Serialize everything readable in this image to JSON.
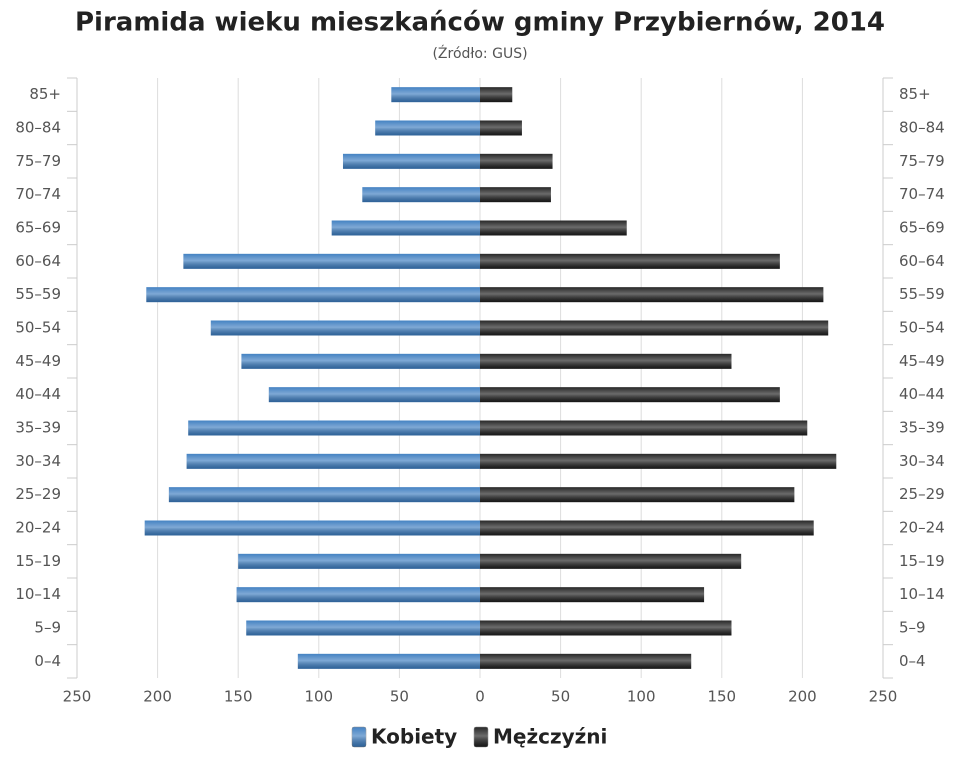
{
  "chart_data": {
    "type": "pyramid",
    "title": "Piramida wieku mieszkańców gminy Przybiernów, 2014",
    "subtitle": "(Źródło: GUS)",
    "categories": [
      "85+",
      "80–84",
      "75–79",
      "70–74",
      "65–69",
      "60–64",
      "55–59",
      "50–54",
      "45–49",
      "40–44",
      "35–39",
      "30–34",
      "25–29",
      "20–24",
      "15–19",
      "10–14",
      "5–9",
      "0–4"
    ],
    "series": [
      {
        "name": "Kobiety",
        "color": "#3a7bbf",
        "values": [
          55,
          65,
          85,
          73,
          92,
          184,
          207,
          167,
          148,
          131,
          181,
          182,
          193,
          208,
          150,
          151,
          145,
          113
        ]
      },
      {
        "name": "Mężczyźni",
        "color": "#1c1c1c",
        "values": [
          20,
          26,
          45,
          44,
          91,
          186,
          213,
          216,
          156,
          186,
          203,
          221,
          195,
          207,
          162,
          139,
          156,
          131
        ]
      }
    ],
    "xlim": [
      -250,
      250
    ],
    "xticks": [
      {
        "value": -250,
        "label": "250"
      },
      {
        "value": -200,
        "label": "200"
      },
      {
        "value": -150,
        "label": "150"
      },
      {
        "value": -100,
        "label": "100"
      },
      {
        "value": -50,
        "label": "50"
      },
      0,
      50,
      100,
      150,
      200,
      250
    ],
    "grid": true
  }
}
